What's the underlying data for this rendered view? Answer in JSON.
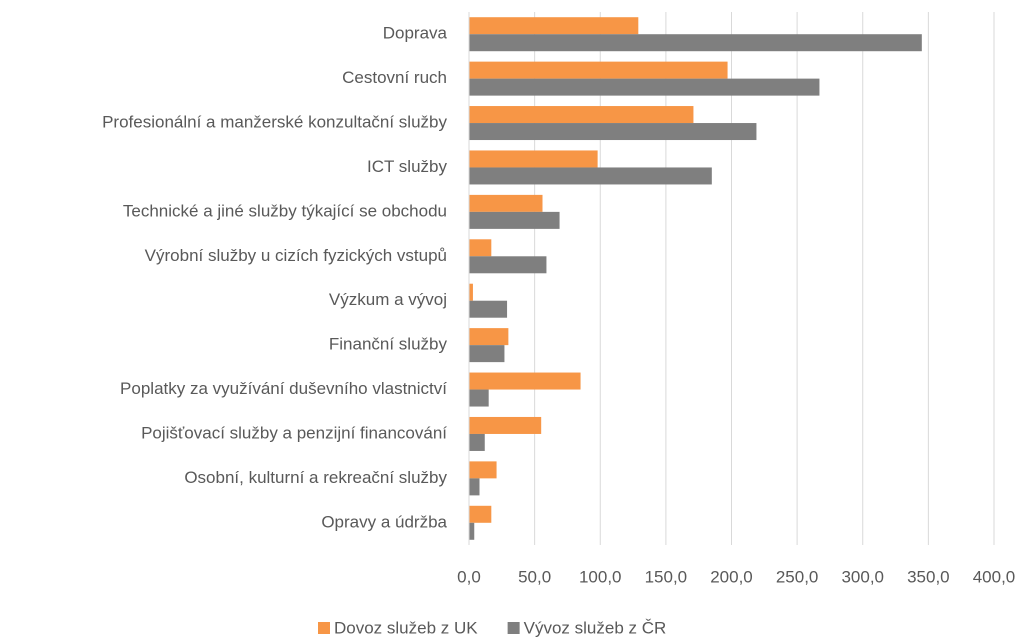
{
  "chart_data": {
    "type": "barh",
    "categories": [
      "Doprava",
      "Cestovní ruch",
      "Profesionální a manžerské konzultační služby",
      "ICT služby",
      "Technické a jiné služby týkající se obchodu",
      "Výrobní služby u cizích fyzických vstupů",
      "Výzkum a vývoj",
      "Finanční služby",
      "Poplatky za využívání duševního vlastnictví",
      "Pojišťovací služby a penzijní financování",
      "Osobní, kulturní a rekreační služby",
      "Opravy a údržba"
    ],
    "series": [
      {
        "name": "Dovoz služeb z UK",
        "color": "#f79646",
        "values": [
          129,
          197,
          171,
          98,
          56,
          17,
          3,
          30,
          85,
          55,
          21,
          17
        ]
      },
      {
        "name": "Vývoz služeb z ČR",
        "color": "#7f7f7f",
        "values": [
          345,
          267,
          219,
          185,
          69,
          59,
          29,
          27,
          15,
          12,
          8,
          4
        ]
      }
    ],
    "xlim": [
      0,
      400
    ],
    "xticks": [
      {
        "value": 0,
        "label": "0,0"
      },
      {
        "value": 50,
        "label": "50,0"
      },
      {
        "value": 100,
        "label": "100,0"
      },
      {
        "value": 150,
        "label": "150,0"
      },
      {
        "value": 200,
        "label": "200,0"
      },
      {
        "value": 250,
        "label": "250,0"
      },
      {
        "value": 300,
        "label": "300,0"
      },
      {
        "value": 350,
        "label": "350,0"
      },
      {
        "value": 400,
        "label": "400,0"
      }
    ],
    "grid": true,
    "legend": "bottom"
  }
}
